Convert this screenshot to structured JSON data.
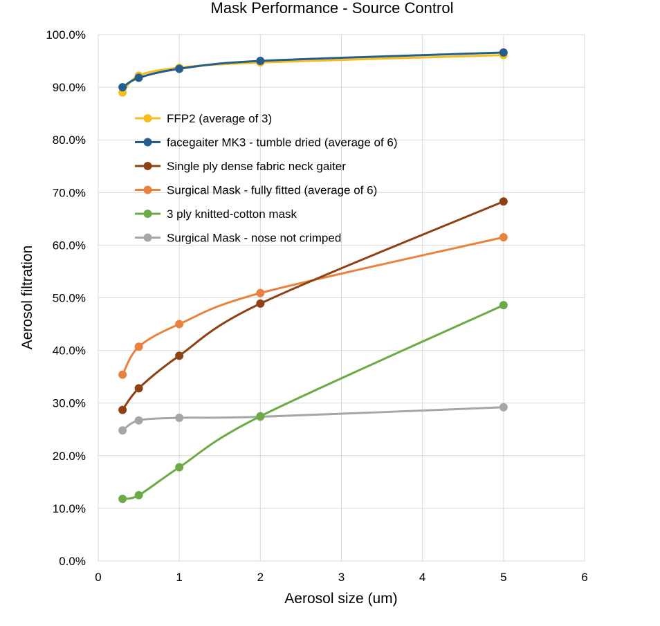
{
  "chart_data": {
    "type": "line",
    "title": "Mask Performance - Source Control",
    "xlabel": "Aerosol size (um)",
    "ylabel": "Aerosol filtration",
    "xlim": [
      0,
      6
    ],
    "ylim": [
      0,
      100
    ],
    "x_ticks": [
      0,
      1,
      2,
      3,
      4,
      5,
      6
    ],
    "y_ticks": [
      0,
      10,
      20,
      30,
      40,
      50,
      60,
      70,
      80,
      90,
      100
    ],
    "x_tick_labels": [
      "0",
      "1",
      "2",
      "3",
      "4",
      "5",
      "6"
    ],
    "y_tick_labels": [
      "0.0%",
      "10.0%",
      "20.0%",
      "30.0%",
      "40.0%",
      "50.0%",
      "60.0%",
      "70.0%",
      "80.0%",
      "90.0%",
      "100.0%"
    ],
    "grid": true,
    "legend_position": "inside-upper-left",
    "x": [
      0.3,
      0.5,
      1,
      2,
      5
    ],
    "series": [
      {
        "name": "FFP2 (average of 3)",
        "color": "#F5BE1E",
        "values": [
          89.0,
          92.2,
          93.7,
          94.7,
          96.1
        ]
      },
      {
        "name": "facegaiter MK3 - tumble dried (average of 6)",
        "color": "#255E8C",
        "values": [
          90.0,
          91.8,
          93.5,
          95.0,
          96.6
        ]
      },
      {
        "name": "Single ply dense fabric neck gaiter",
        "color": "#8E4112",
        "values": [
          28.7,
          32.8,
          39.0,
          48.9,
          68.3
        ]
      },
      {
        "name": "Surgical Mask - fully fitted (average of 6)",
        "color": "#E8823D",
        "values": [
          35.4,
          40.7,
          45.0,
          50.9,
          61.5
        ]
      },
      {
        "name": "3 ply knitted-cotton mask",
        "color": "#6CAA45",
        "values": [
          11.8,
          12.5,
          17.8,
          27.5,
          48.6
        ]
      },
      {
        "name": "Surgical Mask - nose not crimped",
        "color": "#A6A6A6",
        "values": [
          24.8,
          26.7,
          27.2,
          27.4,
          29.2
        ]
      }
    ]
  }
}
